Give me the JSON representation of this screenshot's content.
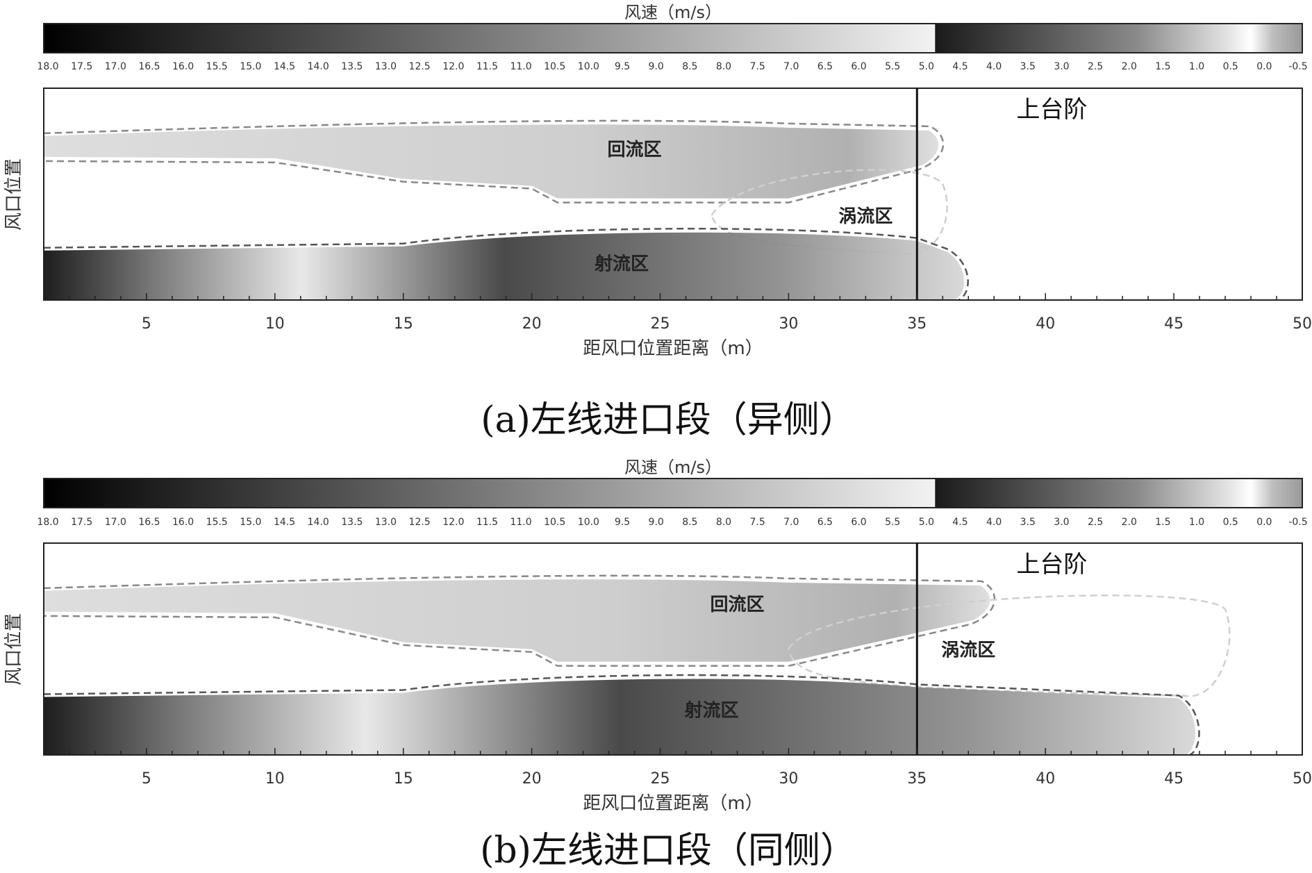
{
  "chart_data": [
    {
      "type": "heatmap",
      "panel_id": "a",
      "title": "(a)左线进口段（异侧）",
      "colorbar_title": "风速（m/s）",
      "colorbar_ticks": [
        "18.0",
        "17.5",
        "17.0",
        "16.5",
        "16.0",
        "15.5",
        "15.0",
        "14.5",
        "14.0",
        "13.5",
        "13.0",
        "12.5",
        "12.0",
        "11.5",
        "11.0",
        "10.5",
        "10.0",
        "9.5",
        "9.0",
        "8.5",
        "8.0",
        "7.5",
        "7.0",
        "6.5",
        "6.0",
        "5.5",
        "5.0",
        "4.5",
        "4.0",
        "3.5",
        "3.0",
        "2.5",
        "2.0",
        "1.5",
        "1.0",
        "0.5",
        "0.0",
        "-0.5"
      ],
      "colorbar_range": [
        18.0,
        -0.5
      ],
      "xlabel": "距风口位置距离（m）",
      "ylabel": "风口位置",
      "xlim": [
        1,
        50
      ],
      "xticks": [
        5,
        10,
        15,
        20,
        25,
        30,
        35,
        40,
        45,
        50
      ],
      "bench_x": 35,
      "bench_label": "上台阶",
      "regions": [
        {
          "name": "回流区",
          "x_start": 1,
          "x_end": 36
        },
        {
          "name": "涡流区",
          "x_start": 27,
          "x_end": 36
        },
        {
          "name": "射流区",
          "x_start": 1,
          "x_end": 37
        }
      ]
    },
    {
      "type": "heatmap",
      "panel_id": "b",
      "title": "(b)左线进口段（同侧）",
      "colorbar_title": "风速（m/s）",
      "colorbar_ticks": [
        "18.0",
        "17.5",
        "17.0",
        "16.5",
        "16.0",
        "15.5",
        "15.0",
        "14.5",
        "14.0",
        "13.5",
        "13.0",
        "12.5",
        "12.0",
        "11.5",
        "11.0",
        "10.5",
        "10.0",
        "9.5",
        "9.0",
        "8.5",
        "8.0",
        "7.5",
        "7.0",
        "6.5",
        "6.0",
        "5.5",
        "5.0",
        "4.5",
        "4.0",
        "3.5",
        "3.0",
        "2.5",
        "2.0",
        "1.5",
        "1.0",
        "0.5",
        "0.0",
        "-0.5"
      ],
      "colorbar_range": [
        18.0,
        -0.5
      ],
      "xlabel": "距风口位置距离（m）",
      "ylabel": "风口位置",
      "xlim": [
        1,
        50
      ],
      "xticks": [
        5,
        10,
        15,
        20,
        25,
        30,
        35,
        40,
        45,
        50
      ],
      "bench_x": 35,
      "bench_label": "上台阶",
      "regions": [
        {
          "name": "回流区",
          "x_start": 1,
          "x_end": 38
        },
        {
          "name": "涡流区",
          "x_start": 30,
          "x_end": 47
        },
        {
          "name": "射流区",
          "x_start": 1,
          "x_end": 46
        }
      ]
    }
  ]
}
